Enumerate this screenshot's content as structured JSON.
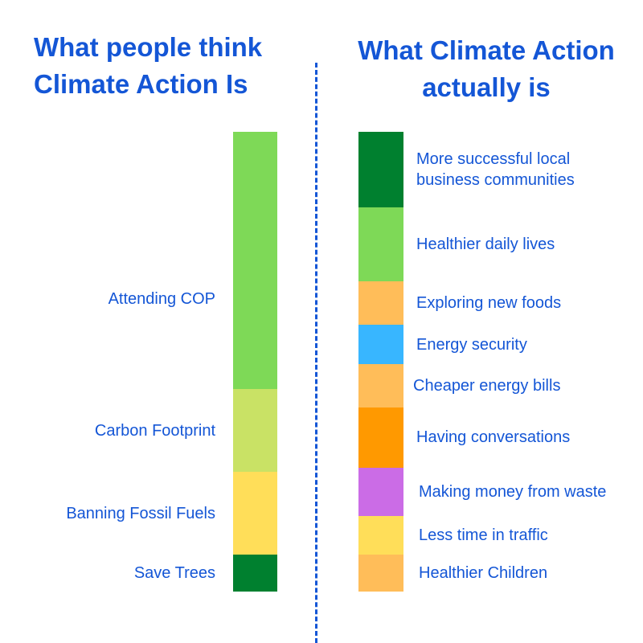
{
  "titles": {
    "left": [
      "What people think",
      "Climate Action Is"
    ],
    "right": [
      "What Climate Action",
      "actually is"
    ]
  },
  "chart_data": [
    {
      "type": "bar",
      "stacked": true,
      "orientation": "vertical",
      "name": "What people think Climate Action Is",
      "segments": [
        {
          "label": "Attending COP",
          "value": 56,
          "color": "#7ed957"
        },
        {
          "label": "Carbon Footprint",
          "value": 18,
          "color": "#c9e265"
        },
        {
          "label": "Banning Fossil Fuels",
          "value": 18,
          "color": "#ffde59"
        },
        {
          "label": "Save Trees",
          "value": 8,
          "color": "#00802f"
        }
      ]
    },
    {
      "type": "bar",
      "stacked": true,
      "orientation": "vertical",
      "name": "What Climate Action actually is",
      "segments": [
        {
          "label": [
            "More successful local",
            "business communities"
          ],
          "value": 16.5,
          "color": "#00802f"
        },
        {
          "label": "Healthier daily lives",
          "value": 16,
          "color": "#7ed957"
        },
        {
          "label": "Exploring new foods",
          "value": 9.5,
          "color": "#ffbd59"
        },
        {
          "label": "Energy security",
          "value": 8.5,
          "color": "#38b6ff"
        },
        {
          "label": "Cheaper energy bills",
          "value": 9.5,
          "color": "#ffbd59"
        },
        {
          "label": "Having conversations",
          "value": 13,
          "color": "#ff9900"
        },
        {
          "label": "Making money from waste",
          "value": 10.5,
          "color": "#cb6ce6"
        },
        {
          "label": "Less time in traffic",
          "value": 8.5,
          "color": "#ffde59"
        },
        {
          "label": "Healthier Children",
          "value": 8,
          "color": "#ffbd59"
        }
      ]
    }
  ]
}
